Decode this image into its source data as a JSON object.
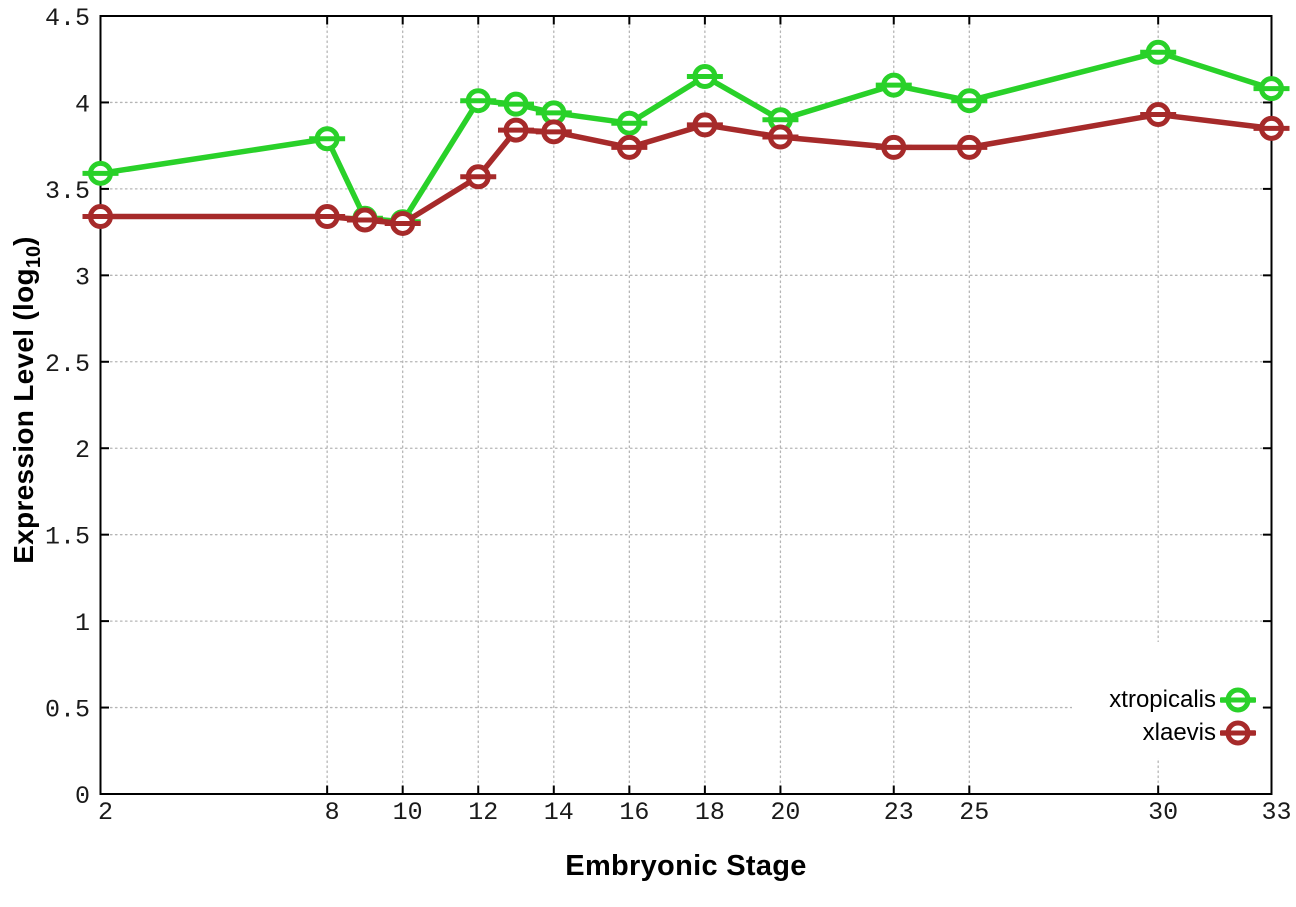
{
  "chart_data": {
    "type": "line",
    "title": "",
    "xlabel": "Embryonic Stage",
    "ylabel": "Expression Level (log10)",
    "ylabel_parts": {
      "main": "Expression Level (log",
      "sub": "10",
      "end": ")"
    },
    "xlim": [
      2,
      33
    ],
    "ylim": [
      0,
      4.5
    ],
    "grid": true,
    "legend_position": "inside-bottom-right",
    "x": [
      2,
      8,
      9,
      10,
      12,
      13,
      14,
      16,
      18,
      20,
      23,
      25,
      30,
      33
    ],
    "xtick_values": [
      2,
      8,
      10,
      12,
      14,
      16,
      18,
      20,
      23,
      25,
      30,
      33
    ],
    "xtick_labels": [
      "2",
      "8",
      "10",
      "12",
      "14",
      "16",
      "18",
      "20",
      "23",
      "25",
      "30",
      "33"
    ],
    "ytick_values": [
      0,
      0.5,
      1,
      1.5,
      2,
      2.5,
      3,
      3.5,
      4,
      4.5
    ],
    "ytick_labels": [
      "0",
      "0.5",
      "1",
      "1.5",
      "2",
      "2.5",
      "3",
      "3.5",
      "4",
      "4.5"
    ],
    "series": [
      {
        "name": "xtropicalis",
        "color": "#29D129",
        "marker": "open-circle-errorbar",
        "values": [
          3.59,
          3.79,
          3.33,
          3.31,
          4.01,
          3.99,
          3.94,
          3.88,
          4.15,
          3.9,
          4.1,
          4.01,
          4.29,
          4.08
        ]
      },
      {
        "name": "xlaevis",
        "color": "#A62A2A",
        "marker": "open-circle-errorbar",
        "values": [
          3.34,
          3.34,
          3.32,
          3.3,
          3.57,
          3.84,
          3.83,
          3.74,
          3.87,
          3.8,
          3.74,
          3.74,
          3.93,
          3.85
        ]
      }
    ]
  },
  "colors": {
    "background": "#FFFFFF",
    "axis_border": "#000000",
    "grid": "#B5B5B5",
    "tick_text": "#1A1A1A",
    "label_text": "#000000"
  }
}
